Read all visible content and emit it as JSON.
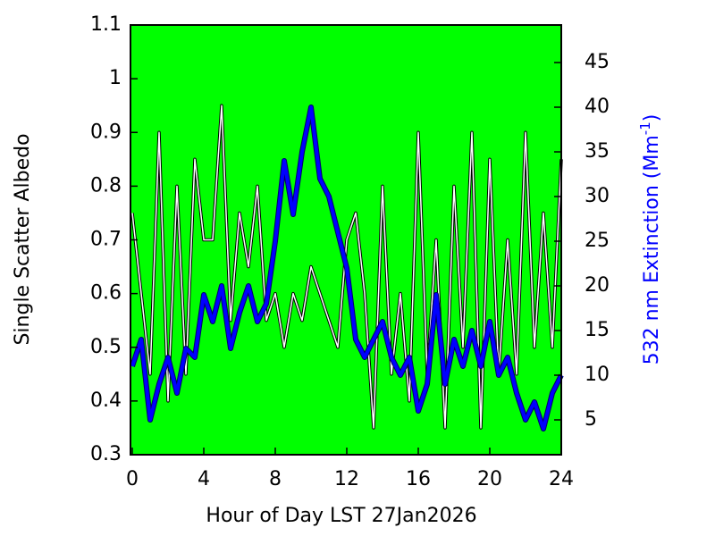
{
  "chart_data": {
    "type": "line",
    "xlabel": "Hour of Day LST 27Jan2026",
    "ylabel": "Single Scatter Albedo",
    "y2label": {
      "text": "532 nm Extinction (Mm",
      "sup": "-1",
      "end": ")"
    },
    "background": "#00ff00",
    "xlim": [
      -0.1,
      24
    ],
    "xticks": [
      0,
      4,
      8,
      12,
      16,
      20,
      24
    ],
    "ylim": [
      0.3,
      1.1
    ],
    "yticks": [
      0.3,
      0.4,
      0.5,
      0.6,
      0.7,
      0.8,
      0.9,
      1,
      1.1
    ],
    "y2lim": [
      1.1,
      49.2
    ],
    "y2ticks": [
      5,
      10,
      15,
      20,
      25,
      30,
      35,
      40,
      45
    ],
    "x": [
      0,
      0.5,
      1,
      1.5,
      2,
      2.5,
      3,
      3.5,
      4,
      4.5,
      5,
      5.5,
      6,
      6.5,
      7,
      7.5,
      8,
      8.5,
      9,
      9.5,
      10,
      10.5,
      11,
      11.5,
      12,
      12.5,
      13,
      13.5,
      14,
      14.5,
      15,
      15.5,
      16,
      16.5,
      17,
      17.5,
      18,
      18.5,
      19,
      19.5,
      20,
      20.5,
      21,
      21.5,
      22,
      22.5,
      23,
      23.5,
      24
    ],
    "series": [
      {
        "color": "#ffffff",
        "axis": "y",
        "values": [
          0.75,
          0.6,
          0.45,
          0.9,
          0.4,
          0.8,
          0.45,
          0.85,
          0.7,
          0.7,
          0.95,
          0.55,
          0.75,
          0.65,
          0.8,
          0.55,
          0.6,
          0.5,
          0.6,
          0.55,
          0.65,
          0.6,
          0.55,
          0.5,
          0.7,
          0.75,
          0.6,
          0.35,
          0.8,
          0.45,
          0.6,
          0.4,
          0.9,
          0.45,
          0.7,
          0.35,
          0.8,
          0.5,
          0.9,
          0.35,
          0.85,
          0.45,
          0.7,
          0.45,
          0.9,
          0.5,
          0.75,
          0.5,
          0.85
        ]
      },
      {
        "color": "#0000ff",
        "axis": "y2",
        "values": [
          11,
          14,
          5,
          9,
          12,
          8,
          13,
          12,
          19,
          16,
          20,
          13,
          17,
          20,
          16,
          18,
          25,
          34,
          28,
          35,
          40,
          32,
          30,
          26,
          22,
          14,
          12,
          14,
          16,
          12,
          10,
          12,
          6,
          9,
          19,
          9,
          14,
          11,
          15,
          11,
          16,
          10,
          12,
          8,
          5,
          7,
          4,
          8,
          10
        ]
      }
    ]
  }
}
